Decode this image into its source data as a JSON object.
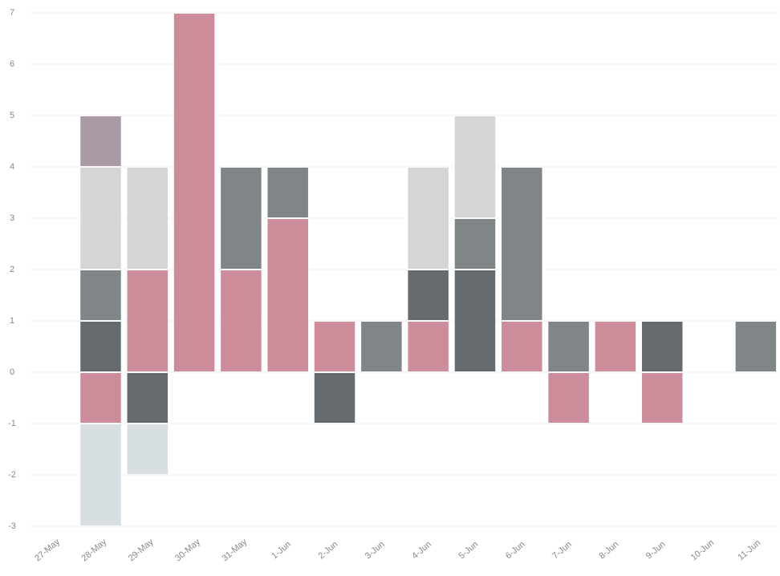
{
  "chart_data": {
    "type": "bar",
    "stacked": true,
    "categories": [
      "27-May",
      "28-May",
      "29-May",
      "30-May",
      "31-May",
      "1-Jun",
      "2-Jun",
      "3-Jun",
      "4-Jun",
      "5-Jun",
      "6-Jun",
      "7-Jun",
      "8-Jun",
      "9-Jun",
      "10-Jun",
      "11-Jun"
    ],
    "series": [
      {
        "color": "#cc8c99",
        "values": [
          null,
          -1,
          2,
          7,
          2,
          3,
          1,
          null,
          1,
          null,
          1,
          -1,
          1,
          -1,
          null,
          null
        ]
      },
      {
        "color": "#656a6e",
        "values": [
          null,
          1,
          -1,
          null,
          null,
          null,
          -1,
          null,
          1,
          2,
          null,
          null,
          null,
          1,
          null,
          null
        ]
      },
      {
        "color": "#808588",
        "values": [
          null,
          1,
          null,
          null,
          2,
          1,
          null,
          1,
          null,
          1,
          3,
          1,
          null,
          null,
          null,
          1
        ]
      },
      {
        "color": "#d4d6d3",
        "values": [
          null,
          2,
          2,
          null,
          null,
          null,
          null,
          null,
          2,
          2,
          null,
          null,
          null,
          null,
          null,
          null
        ]
      },
      {
        "color": "#aa9aa6",
        "values": [
          null,
          1,
          null,
          null,
          null,
          null,
          null,
          null,
          null,
          null,
          null,
          null,
          null,
          null,
          null,
          null
        ]
      },
      {
        "color": "#d7dfe2",
        "values": [
          null,
          -2,
          -1,
          null,
          null,
          null,
          null,
          null,
          null,
          null,
          null,
          null,
          null,
          null,
          null,
          null
        ]
      }
    ],
    "ylim": [
      -3,
      7
    ],
    "yticks": [
      -3,
      -2,
      -1,
      0,
      1,
      2,
      3,
      4,
      5,
      6,
      7
    ],
    "grid": true
  }
}
